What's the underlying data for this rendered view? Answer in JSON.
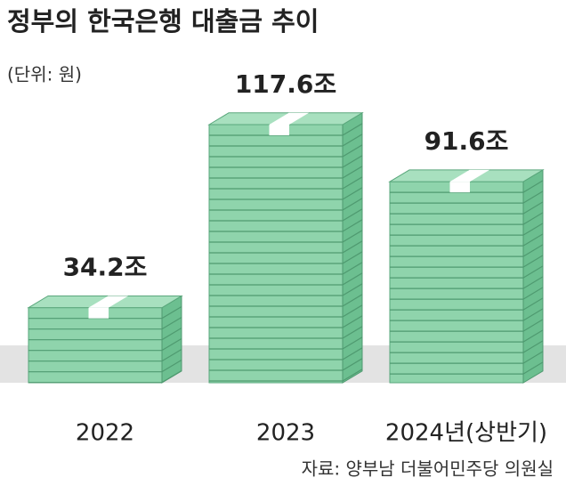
{
  "chart_data": {
    "type": "bar",
    "title": "정부의 한국은행 대출금 추이",
    "subtitle": "(단위: 원)",
    "categories": [
      "2022",
      "2023",
      "2024년(상반기)"
    ],
    "values": [
      34.2,
      117.6,
      91.6
    ],
    "value_labels": [
      "34.2조",
      "117.6조",
      "91.6조"
    ],
    "color": "#8fd4ac",
    "source": "자료: 양부남 더불어민주당 의원실"
  }
}
